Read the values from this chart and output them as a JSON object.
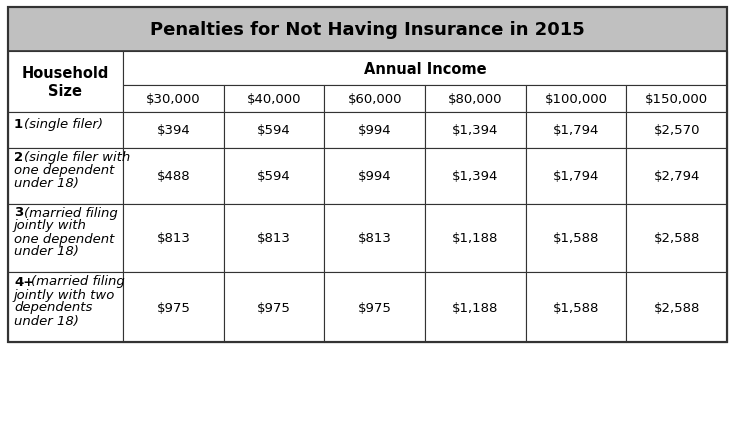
{
  "title": "Penalties for Not Having Insurance in 2015",
  "title_bg": "#c0c0c0",
  "header_annual_income": "Annual Income",
  "col_header": [
    "$30,000",
    "$40,000",
    "$60,000",
    "$80,000",
    "$100,000",
    "$150,000"
  ],
  "row_header": "Household\nSize",
  "row_labels": [
    [
      "1",
      "(single filer)"
    ],
    [
      "2",
      "(single filer with\none dependent\nunder 18)"
    ],
    [
      "3",
      "(married filing\njointly with\none dependent\nunder 18)"
    ],
    [
      "4+",
      "(married filing\njointly with two\ndependents\nunder 18)"
    ]
  ],
  "values": [
    [
      "$394",
      "$594",
      "$994",
      "$1,394",
      "$1,794",
      "$2,570"
    ],
    [
      "$488",
      "$594",
      "$994",
      "$1,394",
      "$1,794",
      "$2,794"
    ],
    [
      "$813",
      "$813",
      "$813",
      "$1,188",
      "$1,588",
      "$2,588"
    ],
    [
      "$975",
      "$975",
      "$975",
      "$1,188",
      "$1,588",
      "$2,588"
    ]
  ],
  "bg_color": "#ffffff",
  "border_color": "#333333",
  "title_font_size": 13,
  "header_font_size": 10.5,
  "cell_font_size": 9.5,
  "label_font_size": 9.5
}
